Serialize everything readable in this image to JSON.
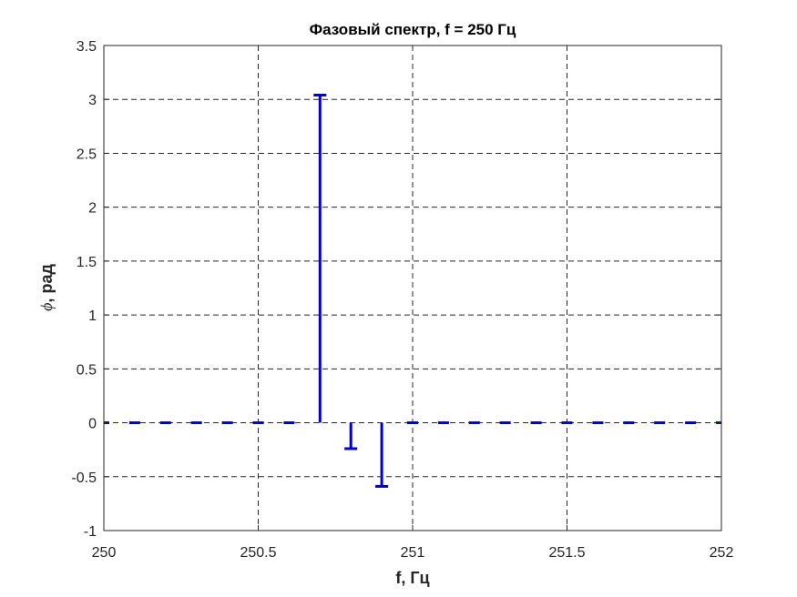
{
  "chart_data": {
    "type": "stem",
    "title": "Фазовый спектр, f = 250 Гц",
    "xlabel": "f, Гц",
    "ylabel_symbol": "ϕ",
    "ylabel_text": ", рад",
    "xlim": [
      250,
      252
    ],
    "ylim": [
      -1,
      3.5
    ],
    "xticks": [
      "250",
      "250.5",
      "251",
      "251.5",
      "252"
    ],
    "yticks": [
      "-1",
      "-0.5",
      "0",
      "0.5",
      "1",
      "1.5",
      "2",
      "2.5",
      "3",
      "3.5"
    ],
    "grid": true,
    "grid_style": "dashed",
    "colors": {
      "series": "#0000c8",
      "grid": "#262626",
      "axes": "#262626"
    },
    "series": [
      {
        "x": [
          250.0,
          250.1,
          250.2,
          250.3,
          250.4,
          250.5,
          250.6,
          250.7,
          250.8,
          250.9,
          251.0,
          251.1,
          251.2,
          251.3,
          251.4,
          251.5,
          251.6,
          251.7,
          251.8,
          251.9,
          252.0
        ],
        "y": [
          0,
          0,
          0,
          0,
          0,
          0,
          0,
          3.04,
          -0.24,
          -0.59,
          0,
          0,
          0,
          0,
          0,
          0,
          0,
          0,
          0,
          0,
          0
        ]
      }
    ]
  }
}
